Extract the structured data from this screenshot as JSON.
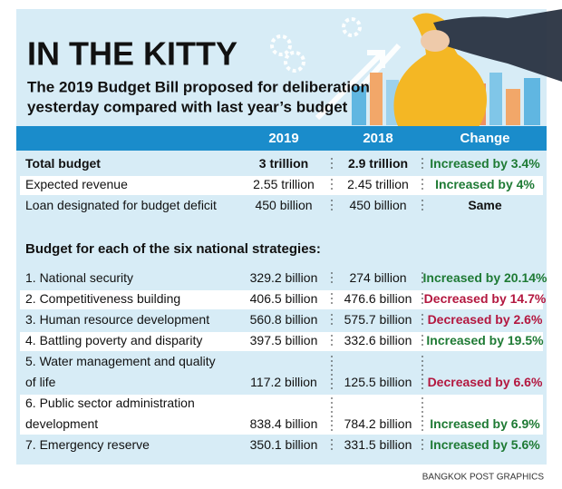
{
  "header": {
    "title": "IN THE KITTY",
    "subtitle": [
      "The 2019 Budget Bill proposed for deliberation",
      "yesterday compared with last year’s budget"
    ]
  },
  "table": {
    "columns": [
      "2019",
      "2018",
      "Change"
    ],
    "rows": [
      {
        "label": [
          "Total budget"
        ],
        "bold": true,
        "y2019": "3 trillion",
        "y2018": "2.9 trillion",
        "change": "Increased by 3.4%",
        "change_color": "#1e7a34"
      },
      {
        "label": [
          "Expected revenue"
        ],
        "y2019": "2.55 trillion",
        "y2018": "2.45 trillion",
        "change": "Increased by 4%",
        "change_color": "#1e7a34"
      },
      {
        "label": [
          "Loan designated for budget deficit"
        ],
        "y2019": "450 billion",
        "y2018": "450 billion",
        "change": "Same",
        "change_color": "#111111"
      }
    ],
    "section_heading": "Budget for each of the six national strategies:",
    "strategies": [
      {
        "label": [
          "1. National security"
        ],
        "y2019": "329.2 billion",
        "y2018": "274 billion",
        "change": "Increased by 20.14%",
        "change_color": "#1e7a34"
      },
      {
        "label": [
          "2. Competitiveness building"
        ],
        "y2019": "406.5 billion",
        "y2018": "476.6 billion",
        "change": "Decreased by 14.7%",
        "change_color": "#b3173f"
      },
      {
        "label": [
          "3. Human resource development"
        ],
        "y2019": "560.8 billion",
        "y2018": "575.7 billion",
        "change": "Decreased by 2.6%",
        "change_color": "#b3173f"
      },
      {
        "label": [
          "4. Battling poverty and disparity"
        ],
        "y2019": "397.5 billion",
        "y2018": "332.6 billion",
        "change": "Increased by 19.5%",
        "change_color": "#1e7a34"
      },
      {
        "label": [
          "5. Water management and quality",
          "of life"
        ],
        "y2019": "117.2 billion",
        "y2018": "125.5 billion",
        "change": "Decreased by 6.6%",
        "change_color": "#b3173f"
      },
      {
        "label": [
          "6. Public sector administration",
          "development"
        ],
        "y2019": "838.4 billion",
        "y2018": "784.2 billion",
        "change": "Increased by 6.9%",
        "change_color": "#1e7a34"
      },
      {
        "label": [
          "7. Emergency reserve"
        ],
        "y2019": "350.1 billion",
        "y2018": "331.5 billion",
        "change": "Increased by 5.6%",
        "change_color": "#1e7a34"
      }
    ]
  },
  "footer": {
    "credit": "BANGKOK POST GRAPHICS"
  }
}
